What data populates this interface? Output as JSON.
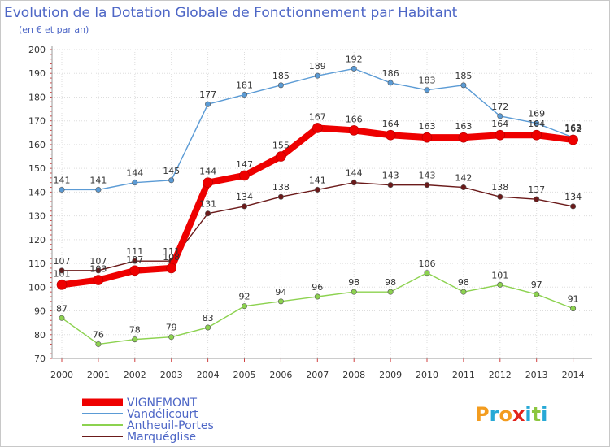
{
  "title": "Evolution de la Dotation Globale de Fonctionnement par Habitant",
  "subtitle": "(en € et par an)",
  "logo": {
    "text": "Proxiti",
    "letter_colors": [
      "#f39c1f",
      "#27a9d6",
      "#f39c1f",
      "#e2231a",
      "#27a9d6",
      "#8cc63f",
      "#27a9d6"
    ]
  },
  "chart_data": {
    "type": "line",
    "title": "Evolution de la Dotation Globale de Fonctionnement par Habitant",
    "subtitle": "(en € et par an)",
    "xlabel": "",
    "ylabel": "",
    "x": [
      "2000",
      "2001",
      "2002",
      "2003",
      "2004",
      "2005",
      "2006",
      "2007",
      "2008",
      "2009",
      "2010",
      "2011",
      "2012",
      "2013",
      "2014"
    ],
    "ylim": [
      70,
      200
    ],
    "yticks": [
      "70",
      "80",
      "90",
      "100",
      "110",
      "120",
      "130",
      "140",
      "150",
      "160",
      "170",
      "180",
      "190",
      "200"
    ],
    "grid": true,
    "legend_position": "bottom-left",
    "series": [
      {
        "name": "Marquéglise",
        "color": "#6b1a1a",
        "values": [
          107,
          107,
          111,
          111,
          131,
          134,
          138,
          141,
          144,
          143,
          143,
          142,
          138,
          137,
          134
        ],
        "labels": [
          "107",
          "107",
          "111",
          "111",
          "131",
          "134",
          "138",
          "141",
          "144",
          "143",
          "143",
          "142",
          "138",
          "137",
          "134"
        ]
      },
      {
        "name": "Antheuil-Portes",
        "color": "#8cd24f",
        "values": [
          87,
          76,
          78,
          79,
          83,
          92,
          94,
          96,
          98,
          98,
          106,
          98,
          101,
          97,
          91
        ],
        "labels": [
          "87",
          "76",
          "78",
          "79",
          "83",
          "92",
          "94",
          "96",
          "98",
          "98",
          "106",
          "98",
          "101",
          "97",
          "91"
        ]
      },
      {
        "name": "Vandélicourt",
        "color": "#5b9bd5",
        "values": [
          141,
          141,
          144,
          145,
          177,
          181,
          185,
          189,
          192,
          186,
          183,
          185,
          172,
          169,
          163
        ],
        "labels": [
          "141",
          "141",
          "144",
          "145",
          "177",
          "181",
          "185",
          "189",
          "192",
          "186",
          "183",
          "185",
          "172",
          "169",
          "163"
        ]
      },
      {
        "name": "VIGNEMONT",
        "color": "#ee0000",
        "highlight": true,
        "values": [
          101,
          103,
          107,
          108,
          144,
          147,
          155,
          167,
          166,
          164,
          163,
          163,
          164,
          164,
          162
        ],
        "labels": [
          "101",
          "103",
          "107",
          "108",
          "144",
          "147",
          "155",
          "167",
          "166",
          "164",
          "163",
          "163",
          "164",
          "164",
          "162"
        ]
      }
    ],
    "legend_order": [
      "VIGNEMONT",
      "Vandélicourt",
      "Antheuil-Portes",
      "Marquéglise"
    ]
  }
}
